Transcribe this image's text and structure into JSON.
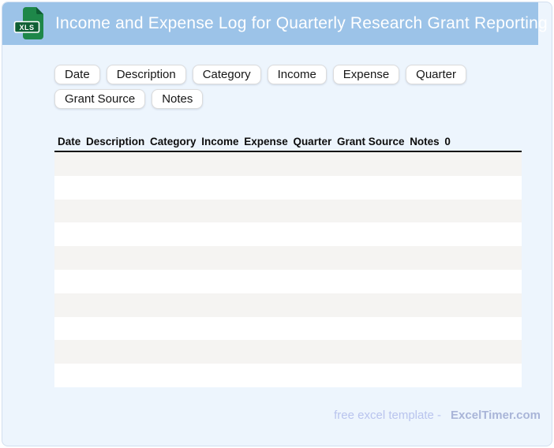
{
  "header": {
    "title": "Income and Expense Log for Quarterly Research Grant Reporting",
    "icon_label": "XLS"
  },
  "chips": [
    "Date",
    "Description",
    "Category",
    "Income",
    "Expense",
    "Quarter",
    "Grant Source",
    "Notes"
  ],
  "table": {
    "columns": [
      "Date",
      "Description",
      "Category",
      "Income",
      "Expense",
      "Quarter",
      "Grant Source",
      "Notes",
      "0"
    ],
    "row_count": 10,
    "first_row_shade": "gray"
  },
  "footer": {
    "text": "free excel template -",
    "brand": "ExcelTimer.com"
  },
  "colors": {
    "header_bg": "#9cc3e8",
    "card_bg": "#edf5fd",
    "card_border": "#d2dfef",
    "icon_green": "#1e8749",
    "icon_green_dark": "#0e5e33",
    "row_stripe": "#f5f4f2",
    "table_rule": "#111111",
    "footer_text": "#b9c4ee",
    "footer_brand": "#a9b5d8"
  }
}
